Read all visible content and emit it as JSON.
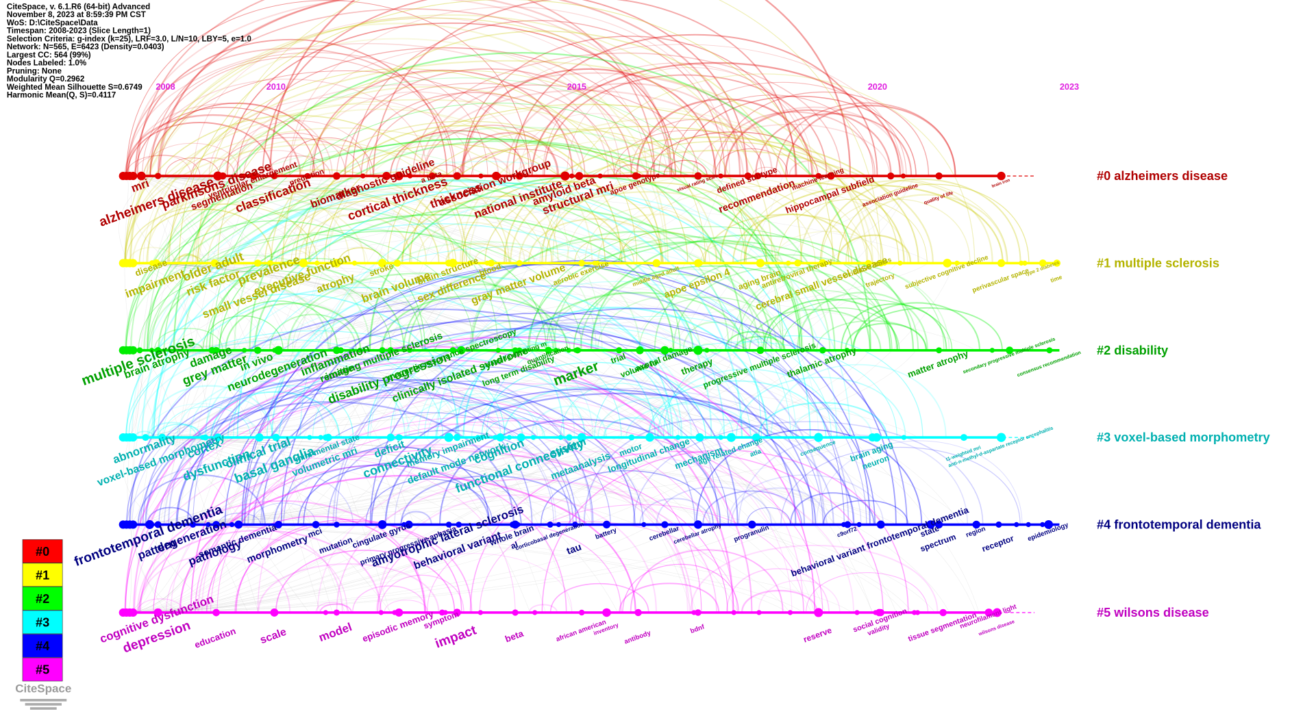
{
  "info": [
    "CiteSpace, v. 6.1.R6 (64-bit) Advanced",
    "November 8, 2023 at 8:59:39 PM CST",
    "WoS: D:\\CiteSpace\\Data",
    "Timespan: 2008-2023 (Slice Length=1)",
    "Selection Criteria: g-index (k=25), LRF=3.0, L/N=10, LBY=5, e=1.0",
    "Network: N=565, E=6423 (Density=0.0403)",
    "Largest CC: 564 (99%)",
    "Nodes Labeled: 1.0%",
    "Pruning: None",
    "Modularity Q=0.2962",
    "Weighted Mean Silhouette S=0.6749",
    "Harmonic Mean(Q, S)=0.4117"
  ],
  "years": [
    "2008",
    "2010",
    "2015",
    "2020",
    "2023"
  ],
  "clusters": [
    {
      "label": "#0 alzheimers disease",
      "color": "#b00000",
      "line_color": "#e00000",
      "keywords": [
        "mri",
        "alzheimers disease",
        "parkinsons disease",
        "segmentation",
        "ventricular enlargement",
        "prediction",
        "classification",
        "biomarker",
        "diagnostic guideline",
        "cortical thickness",
        "a beta",
        "thickness",
        "association workgroup",
        "national institute",
        "amyloid beta",
        "structural mri",
        "apoe genotype",
        "visual rating scale",
        "defined subtype",
        "recommendation",
        "machine learning",
        "hippocampal subfield",
        "association guideline",
        "quality of life",
        "brain iron"
      ]
    },
    {
      "label": "#1 multiple sclerosis",
      "color": "#b4b400",
      "line_color": "#ffff00",
      "keywords": [
        "disease",
        "impairment",
        "older adult",
        "risk factor",
        "prevalence",
        "small vessel disease",
        "executive function",
        "atrophy",
        "stroke",
        "brain volume",
        "brain structure",
        "sex difference",
        "blood",
        "gray matter volume",
        "aerobic exercise",
        "middle aged adult",
        "apoe epsilon 4",
        "aging brain",
        "antiretroviral therapy",
        "cerebral small vessel disease",
        "oxidative stress",
        "trajectory",
        "subjective cognitive decline",
        "perivascular space",
        "type 2 diabetes",
        "time"
      ]
    },
    {
      "label": "#2 disability",
      "color": "#00a000",
      "line_color": "#00ee00",
      "keywords": [
        "multiple sclerosis",
        "brain atrophy",
        "damage",
        "grey matter",
        "in vivo",
        "neurodegeneration",
        "inflammation",
        "image",
        "remitting multiple sclerosis",
        "disability progression",
        "magnetic resonance spectroscopy",
        "clinically isolated syndrome",
        "relapsing remitting m",
        "long term disability",
        "quantification",
        "marker",
        "trial",
        "volume lo",
        "axonal damage",
        "therapy",
        "progressive multiple sclerosis",
        "thalamic atrophy",
        "matter atrophy",
        "secondary progressive multiple sclerosis",
        "consensus recommendation"
      ]
    },
    {
      "label": "#3 voxel-based morphometry",
      "color": "#00b0b0",
      "line_color": "#00ffff",
      "keywords": [
        "abnormality",
        "voxel-based morphometry",
        "cortex",
        "dysfunction",
        "clinical trial",
        "basal ganglia",
        "mini mental state",
        "volumetric mri",
        "deficit",
        "connectivity",
        "memory impairment",
        "default mode network",
        "cognition",
        "functional connectivity",
        "system",
        "metaanalysis",
        "motor",
        "longitudinal change",
        "mechanism",
        "age related change",
        "atla",
        "consequence",
        "brain aging",
        "neuron",
        "t1-weighted mri",
        "anti-n-methyl-d-aspartate receptor encephalitis"
      ]
    },
    {
      "label": "#4 frontotemporal dementia",
      "color": "#000080",
      "line_color": "#0000ff",
      "keywords": [
        "frontotemporal dementia",
        "pattern",
        "degeneration",
        "pathology",
        "semantic dementia",
        "morphometry",
        "mci",
        "mutation",
        "cingulate gyrus",
        "primary progressive aphasia",
        "amyotrophic lateral sclerosis",
        "behavioral variant",
        "whole brain",
        "al",
        "corticobasal degeneration",
        "tau",
        "battery",
        "cerebellar",
        "cerebellar atrophy",
        "progranulin",
        "behavioral variant frontotemporal dementia",
        "c9orf72",
        "state",
        "spectrum",
        "region",
        "receptor",
        "epidemiology"
      ]
    },
    {
      "label": "#5 wilsons disease",
      "color": "#c000c0",
      "line_color": "#ff00ff",
      "keywords": [
        "cognitive dysfunction",
        "depression",
        "education",
        "scale",
        "model",
        "episodic memory",
        "symptom",
        "impact",
        "beta",
        "african american",
        "inventory",
        "antibody",
        "bdnf",
        "reserve",
        "social cognition",
        "validity",
        "tissue segmentation",
        "neurofilament light",
        "wilsons disease"
      ]
    }
  ],
  "legend": [
    {
      "label": "#0",
      "color": "#ff0000"
    },
    {
      "label": "#1",
      "color": "#ffff00"
    },
    {
      "label": "#2",
      "color": "#00ff00"
    },
    {
      "label": "#3",
      "color": "#00ffff"
    },
    {
      "label": "#4",
      "color": "#0000ff"
    },
    {
      "label": "#5",
      "color": "#ff00ff"
    }
  ],
  "logo": "CiteSpace"
}
